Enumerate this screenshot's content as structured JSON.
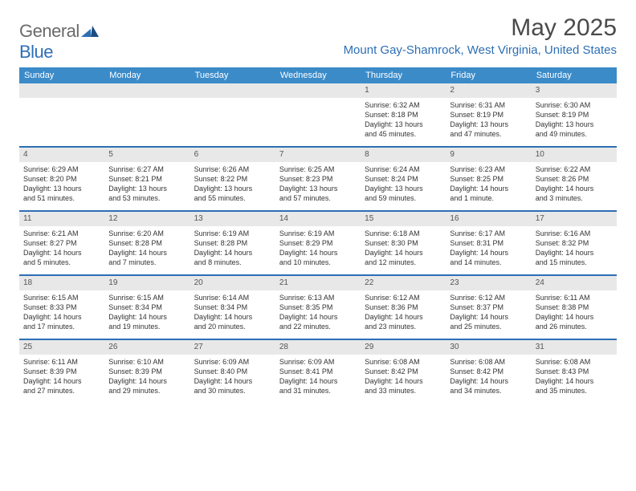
{
  "brand": {
    "text1": "General",
    "text2": "Blue"
  },
  "title": "May 2025",
  "location": "Mount Gay-Shamrock, West Virginia, United States",
  "colors": {
    "header_bg": "#3b8bc9",
    "accent": "#2d6fb5",
    "daynum_bg": "#e8e8e8",
    "text": "#333333"
  },
  "day_names": [
    "Sunday",
    "Monday",
    "Tuesday",
    "Wednesday",
    "Thursday",
    "Friday",
    "Saturday"
  ],
  "weeks": [
    [
      {
        "day": "",
        "lines": []
      },
      {
        "day": "",
        "lines": []
      },
      {
        "day": "",
        "lines": []
      },
      {
        "day": "",
        "lines": []
      },
      {
        "day": "1",
        "lines": [
          "Sunrise: 6:32 AM",
          "Sunset: 8:18 PM",
          "Daylight: 13 hours",
          "and 45 minutes."
        ]
      },
      {
        "day": "2",
        "lines": [
          "Sunrise: 6:31 AM",
          "Sunset: 8:19 PM",
          "Daylight: 13 hours",
          "and 47 minutes."
        ]
      },
      {
        "day": "3",
        "lines": [
          "Sunrise: 6:30 AM",
          "Sunset: 8:19 PM",
          "Daylight: 13 hours",
          "and 49 minutes."
        ]
      }
    ],
    [
      {
        "day": "4",
        "lines": [
          "Sunrise: 6:29 AM",
          "Sunset: 8:20 PM",
          "Daylight: 13 hours",
          "and 51 minutes."
        ]
      },
      {
        "day": "5",
        "lines": [
          "Sunrise: 6:27 AM",
          "Sunset: 8:21 PM",
          "Daylight: 13 hours",
          "and 53 minutes."
        ]
      },
      {
        "day": "6",
        "lines": [
          "Sunrise: 6:26 AM",
          "Sunset: 8:22 PM",
          "Daylight: 13 hours",
          "and 55 minutes."
        ]
      },
      {
        "day": "7",
        "lines": [
          "Sunrise: 6:25 AM",
          "Sunset: 8:23 PM",
          "Daylight: 13 hours",
          "and 57 minutes."
        ]
      },
      {
        "day": "8",
        "lines": [
          "Sunrise: 6:24 AM",
          "Sunset: 8:24 PM",
          "Daylight: 13 hours",
          "and 59 minutes."
        ]
      },
      {
        "day": "9",
        "lines": [
          "Sunrise: 6:23 AM",
          "Sunset: 8:25 PM",
          "Daylight: 14 hours",
          "and 1 minute."
        ]
      },
      {
        "day": "10",
        "lines": [
          "Sunrise: 6:22 AM",
          "Sunset: 8:26 PM",
          "Daylight: 14 hours",
          "and 3 minutes."
        ]
      }
    ],
    [
      {
        "day": "11",
        "lines": [
          "Sunrise: 6:21 AM",
          "Sunset: 8:27 PM",
          "Daylight: 14 hours",
          "and 5 minutes."
        ]
      },
      {
        "day": "12",
        "lines": [
          "Sunrise: 6:20 AM",
          "Sunset: 8:28 PM",
          "Daylight: 14 hours",
          "and 7 minutes."
        ]
      },
      {
        "day": "13",
        "lines": [
          "Sunrise: 6:19 AM",
          "Sunset: 8:28 PM",
          "Daylight: 14 hours",
          "and 8 minutes."
        ]
      },
      {
        "day": "14",
        "lines": [
          "Sunrise: 6:19 AM",
          "Sunset: 8:29 PM",
          "Daylight: 14 hours",
          "and 10 minutes."
        ]
      },
      {
        "day": "15",
        "lines": [
          "Sunrise: 6:18 AM",
          "Sunset: 8:30 PM",
          "Daylight: 14 hours",
          "and 12 minutes."
        ]
      },
      {
        "day": "16",
        "lines": [
          "Sunrise: 6:17 AM",
          "Sunset: 8:31 PM",
          "Daylight: 14 hours",
          "and 14 minutes."
        ]
      },
      {
        "day": "17",
        "lines": [
          "Sunrise: 6:16 AM",
          "Sunset: 8:32 PM",
          "Daylight: 14 hours",
          "and 15 minutes."
        ]
      }
    ],
    [
      {
        "day": "18",
        "lines": [
          "Sunrise: 6:15 AM",
          "Sunset: 8:33 PM",
          "Daylight: 14 hours",
          "and 17 minutes."
        ]
      },
      {
        "day": "19",
        "lines": [
          "Sunrise: 6:15 AM",
          "Sunset: 8:34 PM",
          "Daylight: 14 hours",
          "and 19 minutes."
        ]
      },
      {
        "day": "20",
        "lines": [
          "Sunrise: 6:14 AM",
          "Sunset: 8:34 PM",
          "Daylight: 14 hours",
          "and 20 minutes."
        ]
      },
      {
        "day": "21",
        "lines": [
          "Sunrise: 6:13 AM",
          "Sunset: 8:35 PM",
          "Daylight: 14 hours",
          "and 22 minutes."
        ]
      },
      {
        "day": "22",
        "lines": [
          "Sunrise: 6:12 AM",
          "Sunset: 8:36 PM",
          "Daylight: 14 hours",
          "and 23 minutes."
        ]
      },
      {
        "day": "23",
        "lines": [
          "Sunrise: 6:12 AM",
          "Sunset: 8:37 PM",
          "Daylight: 14 hours",
          "and 25 minutes."
        ]
      },
      {
        "day": "24",
        "lines": [
          "Sunrise: 6:11 AM",
          "Sunset: 8:38 PM",
          "Daylight: 14 hours",
          "and 26 minutes."
        ]
      }
    ],
    [
      {
        "day": "25",
        "lines": [
          "Sunrise: 6:11 AM",
          "Sunset: 8:39 PM",
          "Daylight: 14 hours",
          "and 27 minutes."
        ]
      },
      {
        "day": "26",
        "lines": [
          "Sunrise: 6:10 AM",
          "Sunset: 8:39 PM",
          "Daylight: 14 hours",
          "and 29 minutes."
        ]
      },
      {
        "day": "27",
        "lines": [
          "Sunrise: 6:09 AM",
          "Sunset: 8:40 PM",
          "Daylight: 14 hours",
          "and 30 minutes."
        ]
      },
      {
        "day": "28",
        "lines": [
          "Sunrise: 6:09 AM",
          "Sunset: 8:41 PM",
          "Daylight: 14 hours",
          "and 31 minutes."
        ]
      },
      {
        "day": "29",
        "lines": [
          "Sunrise: 6:08 AM",
          "Sunset: 8:42 PM",
          "Daylight: 14 hours",
          "and 33 minutes."
        ]
      },
      {
        "day": "30",
        "lines": [
          "Sunrise: 6:08 AM",
          "Sunset: 8:42 PM",
          "Daylight: 14 hours",
          "and 34 minutes."
        ]
      },
      {
        "day": "31",
        "lines": [
          "Sunrise: 6:08 AM",
          "Sunset: 8:43 PM",
          "Daylight: 14 hours",
          "and 35 minutes."
        ]
      }
    ]
  ]
}
